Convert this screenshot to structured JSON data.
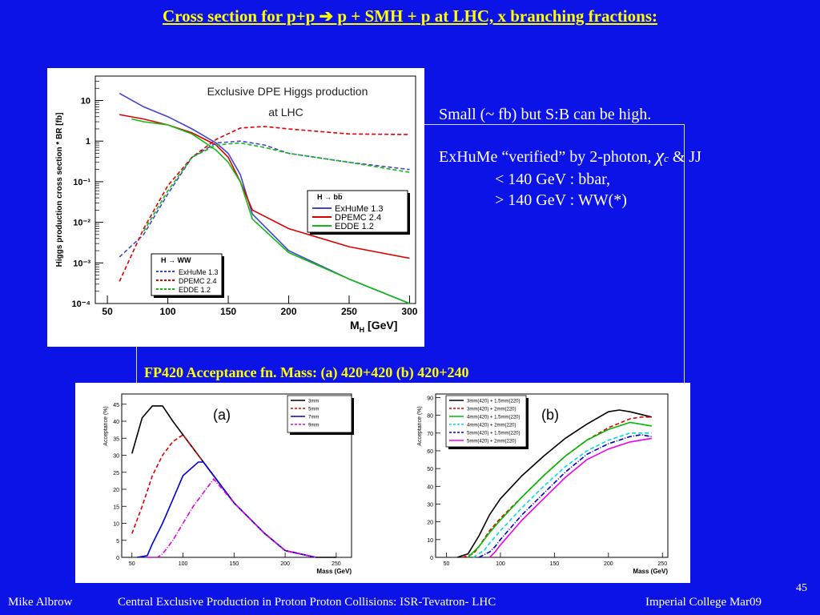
{
  "slide": {
    "title": "Cross section for p+p ➔ p + SMH + p at LHC, x branching fractions:",
    "page_number": "45",
    "footer_left": "Mike Albrow",
    "footer_center": "Central Exclusive Production in Proton Proton Collisions: ISR-Tevatron- LHC",
    "footer_right": "Imperial College Mar09"
  },
  "notes": {
    "line1": "Small (~ fb) but S:B can be high.",
    "line2_a": "ExHuMe “verified” by 2-photon,",
    "line2_chi": "χ",
    "line2_sub": "c",
    "line2_b": "& JJ",
    "line3": "< 140 GeV : bbar,",
    "line4": "> 140 GeV : WW(*)"
  },
  "acceptance_title": "FP420 Acceptance fn. Mass: (a) 420+420 (b) 420+240",
  "chart_data": [
    {
      "type": "line",
      "title": "Exclusive DPE Higgs production",
      "subtitle": "at LHC",
      "xlabel": "M",
      "xlabel_sub": "H",
      "xlabel_unit": "[GeV]",
      "ylabel": "Higgs production cross section * BR [fb]",
      "xlim": [
        40,
        305
      ],
      "ylim": [
        0.0001,
        40
      ],
      "yscale": "log",
      "xticks": [
        50,
        100,
        150,
        200,
        250,
        300
      ],
      "yticks": [
        {
          "v": 10,
          "label": "10"
        },
        {
          "v": 1,
          "label": "1"
        },
        {
          "v": 0.1,
          "label": "10⁻¹"
        },
        {
          "v": 0.01,
          "label": "10⁻²"
        },
        {
          "v": 0.001,
          "label": "10⁻³"
        },
        {
          "v": 0.0001,
          "label": "10⁻⁴"
        }
      ],
      "legends": [
        {
          "title": "H → bb̅",
          "placement": "right",
          "entries": [
            "ExHuMe 1.3",
            "DPEMC 2.4",
            "EDDE 1.2"
          ]
        },
        {
          "title": "H → WW",
          "placement": "bottom-left",
          "entries": [
            "ExHuMe 1.3",
            "DPEMC 2.4",
            "EDDE 1.2"
          ]
        }
      ],
      "series": [
        {
          "group": "bb",
          "color": "#4444cc",
          "dash": "solid",
          "x": [
            60,
            80,
            100,
            120,
            140,
            150,
            160,
            170,
            200,
            250,
            300
          ],
          "y": [
            15,
            7,
            4,
            2,
            0.9,
            0.5,
            0.15,
            0.016,
            0.002,
            0.0004,
            0.0001
          ]
        },
        {
          "group": "bb",
          "color": "#dd0000",
          "dash": "solid",
          "x": [
            60,
            80,
            100,
            120,
            140,
            150,
            160,
            170,
            200,
            250,
            300
          ],
          "y": [
            4.5,
            3.5,
            2.5,
            1.6,
            0.8,
            0.4,
            0.1,
            0.02,
            0.007,
            0.0025,
            0.0013
          ]
        },
        {
          "group": "bb",
          "color": "#11bb11",
          "dash": "solid",
          "x": [
            70,
            80,
            100,
            120,
            140,
            150,
            160,
            170,
            200,
            250,
            300
          ],
          "y": [
            3.5,
            3,
            2.5,
            1.5,
            0.6,
            0.3,
            0.1,
            0.012,
            0.0018,
            0.0004,
            0.0001
          ]
        },
        {
          "group": "ww",
          "color": "#4444cc",
          "dash": "dashed",
          "x": [
            60,
            80,
            100,
            120,
            140,
            160,
            180,
            200,
            250,
            300
          ],
          "y": [
            0.0014,
            0.005,
            0.05,
            0.4,
            0.9,
            1,
            0.8,
            0.5,
            0.3,
            0.2
          ]
        },
        {
          "group": "ww",
          "color": "#dd0000",
          "dash": "dashed",
          "x": [
            60,
            80,
            100,
            120,
            140,
            160,
            180,
            200,
            250,
            300
          ],
          "y": [
            0.00035,
            0.007,
            0.08,
            0.4,
            1.1,
            2.1,
            2.3,
            2.0,
            1.5,
            1.45
          ]
        },
        {
          "group": "ww",
          "color": "#11bb11",
          "dash": "dashed",
          "x": [
            80,
            100,
            120,
            140,
            160,
            180,
            200,
            250,
            300
          ],
          "y": [
            0.006,
            0.06,
            0.4,
            0.8,
            0.9,
            0.7,
            0.5,
            0.3,
            0.17
          ]
        }
      ]
    },
    {
      "type": "line",
      "panel_label": "(a)",
      "xlabel": "Mass (GeV)",
      "ylabel": "Acceptance (%)",
      "xlim": [
        40,
        265
      ],
      "ylim": [
        0,
        48
      ],
      "xticks": [
        50,
        100,
        150,
        200,
        250
      ],
      "yticks": [
        0,
        5,
        10,
        15,
        20,
        25,
        30,
        35,
        40,
        45
      ],
      "legend_placement": "top-right",
      "series": [
        {
          "name": "3mm",
          "color": "#000000",
          "dash": "solid",
          "x": [
            50,
            60,
            70,
            80,
            90,
            120,
            150,
            180,
            200,
            230,
            250
          ],
          "y": [
            30.5,
            41,
            44.5,
            44.5,
            40,
            28,
            16,
            7,
            2,
            0,
            0
          ]
        },
        {
          "name": "5mm",
          "color": "#dd0000",
          "dash": "dashed",
          "x": [
            50,
            60,
            70,
            80,
            90,
            100,
            120,
            150,
            180,
            200,
            230
          ],
          "y": [
            7,
            15,
            24,
            30,
            34,
            36,
            28,
            16,
            7,
            2,
            0
          ]
        },
        {
          "name": "7mm",
          "color": "#0000dd",
          "dash": "solid",
          "x": [
            55,
            65,
            70,
            80,
            90,
            100,
            115,
            120,
            150,
            180,
            200,
            230
          ],
          "y": [
            0,
            0.5,
            4,
            10,
            17,
            24,
            28,
            28,
            16,
            7,
            2,
            0
          ]
        },
        {
          "name": "9mm",
          "color": "#dd00dd",
          "dash": "dashdot",
          "x": [
            65,
            75,
            80,
            90,
            100,
            110,
            120,
            130,
            150,
            180,
            200,
            230
          ],
          "y": [
            0,
            0,
            1,
            5,
            10,
            15,
            19,
            23,
            16,
            7,
            2,
            0
          ]
        }
      ]
    },
    {
      "type": "line",
      "panel_label": "(b)",
      "xlabel": "Mass (GeV)",
      "ylabel": "Acceptance (%)",
      "xlim": [
        40,
        255
      ],
      "ylim": [
        0,
        92
      ],
      "xticks": [
        50,
        100,
        150,
        200,
        250
      ],
      "yticks": [
        0,
        10,
        20,
        30,
        40,
        50,
        60,
        70,
        80,
        90
      ],
      "legend_placement": "top-left",
      "series": [
        {
          "name": "3mm(420) + 1.5mm(220)",
          "color": "#000000",
          "dash": "solid",
          "x": [
            60,
            70,
            80,
            90,
            100,
            120,
            140,
            160,
            180,
            200,
            210,
            220,
            240
          ],
          "y": [
            0,
            2,
            12,
            24,
            33,
            46,
            57,
            67,
            75,
            82,
            83,
            82,
            79
          ]
        },
        {
          "name": "3mm(420) + 2mm(220)",
          "color": "#dd0000",
          "dash": "dashed",
          "x": [
            65,
            75,
            80,
            90,
            100,
            120,
            140,
            160,
            180,
            200,
            220,
            230,
            240
          ],
          "y": [
            0,
            2,
            6,
            15,
            22,
            34,
            46,
            57,
            66,
            73,
            78,
            79,
            79
          ]
        },
        {
          "name": "4mm(420) + 1.5mm(220)",
          "color": "#00bb00",
          "dash": "solid",
          "x": [
            70,
            80,
            90,
            100,
            120,
            140,
            160,
            180,
            200,
            220,
            240
          ],
          "y": [
            0,
            6,
            14,
            21,
            34,
            46,
            57,
            66,
            72,
            76,
            74
          ]
        },
        {
          "name": "4mm(420) + 2mm(220)",
          "color": "#00dddd",
          "dash": "dashed",
          "x": [
            75,
            85,
            90,
            100,
            120,
            140,
            160,
            180,
            200,
            220,
            240
          ],
          "y": [
            0,
            4,
            8,
            15,
            28,
            40,
            51,
            60,
            66,
            70,
            70
          ]
        },
        {
          "name": "5mm(420) + 1.5mm(220)",
          "color": "#0000cc",
          "dash": "dashdot",
          "x": [
            80,
            90,
            95,
            100,
            120,
            140,
            160,
            180,
            200,
            220,
            230,
            240
          ],
          "y": [
            0,
            3,
            6,
            10,
            24,
            36,
            48,
            58,
            64,
            68,
            69,
            68
          ]
        },
        {
          "name": "5mm(420) + 2mm(220)",
          "color": "#ee00ee",
          "dash": "solid",
          "x": [
            90,
            95,
            100,
            110,
            120,
            140,
            160,
            180,
            200,
            220,
            240
          ],
          "y": [
            0,
            3,
            7,
            14,
            21,
            33,
            45,
            55,
            61,
            65,
            67
          ]
        }
      ]
    }
  ]
}
